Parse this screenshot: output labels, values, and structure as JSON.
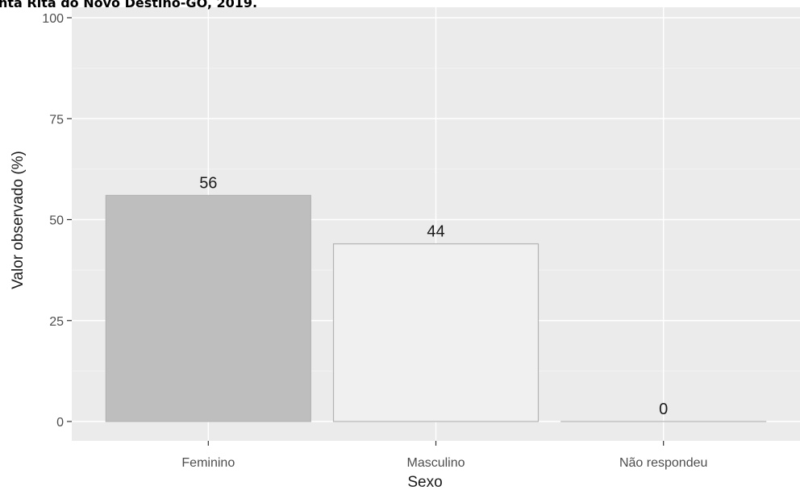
{
  "chart_data": {
    "type": "bar",
    "title": "nta Rita do Novo Destino-GO, 2019.",
    "xlabel": "Sexo",
    "ylabel": "Valor observado (%)",
    "categories": [
      "Feminino",
      "Masculino",
      "Não respondeu"
    ],
    "values": [
      56,
      44,
      0
    ],
    "data_labels": [
      "56",
      "44",
      "0"
    ],
    "ylim": [
      0,
      100
    ],
    "yticks": [
      0,
      25,
      50,
      75,
      100
    ],
    "grid": true,
    "legend": "none",
    "colors": {
      "panel": "#ebebeb",
      "grid_major": "#ffffff",
      "grid_minor": "#f2f2f2",
      "bars": [
        "#bebebe",
        "#f0f0f0",
        "#f0f0f0"
      ],
      "bar_outline": "#b3b3b3",
      "axis_text": "#4d4d4d",
      "axis_title": "#1a1a1a"
    }
  }
}
